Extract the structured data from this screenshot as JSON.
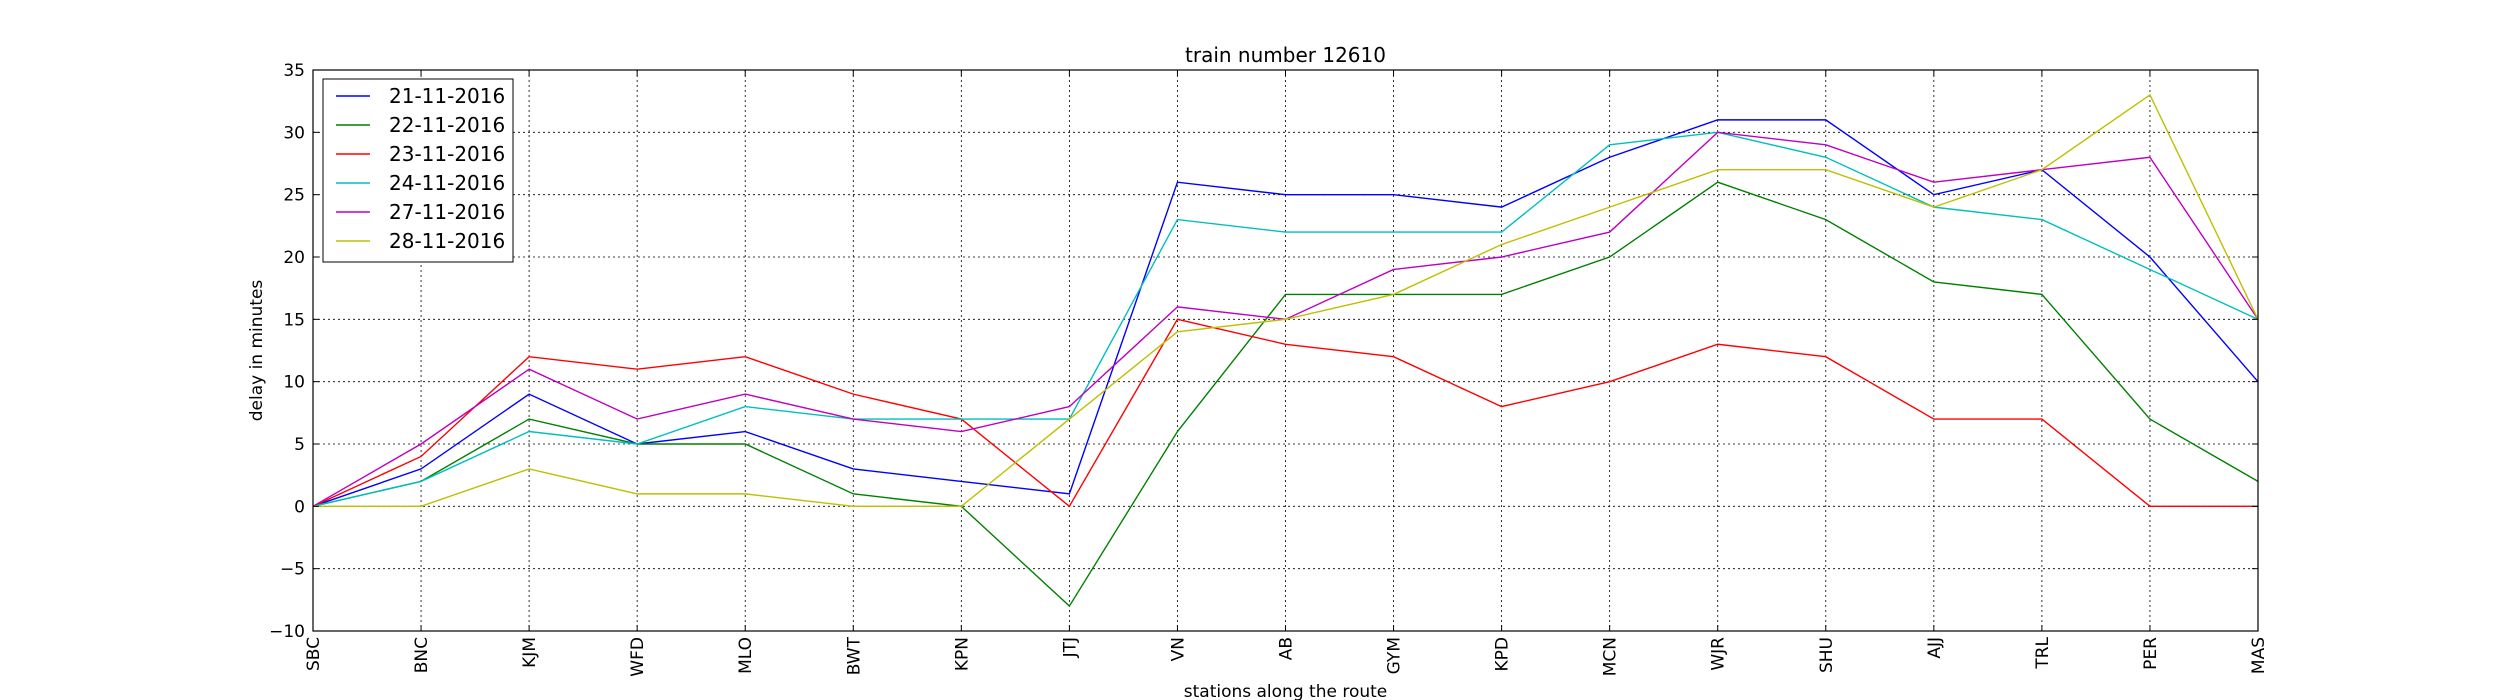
{
  "chart_data": {
    "type": "line",
    "title": "train number 12610",
    "xlabel": "stations along the route",
    "ylabel": "delay in minutes",
    "categories": [
      "SBC",
      "BNC",
      "KJM",
      "WFD",
      "MLO",
      "BWT",
      "KPN",
      "JTJ",
      "VN",
      "AB",
      "GYM",
      "KPD",
      "MCN",
      "WJR",
      "SHU",
      "AJJ",
      "TRL",
      "PER",
      "MAS"
    ],
    "ylim": [
      -10,
      35
    ],
    "yticks": [
      -10,
      -5,
      0,
      5,
      10,
      15,
      20,
      25,
      30,
      35
    ],
    "grid": true,
    "legend_position": "top-left",
    "series": [
      {
        "name": "21-11-2016",
        "color": "#0000ff",
        "values": [
          0,
          3,
          9,
          5,
          6,
          3,
          2,
          1,
          26,
          25,
          25,
          24,
          28,
          31,
          31,
          25,
          27,
          20,
          10
        ]
      },
      {
        "name": "22-11-2016",
        "color": "#008000",
        "values": [
          0,
          2,
          7,
          5,
          5,
          1,
          0,
          -8,
          6,
          17,
          17,
          17,
          20,
          26,
          23,
          18,
          17,
          7,
          2
        ]
      },
      {
        "name": "23-11-2016",
        "color": "#ff0000",
        "values": [
          0,
          4,
          12,
          11,
          12,
          9,
          7,
          0,
          15,
          13,
          12,
          8,
          10,
          13,
          12,
          7,
          7,
          0,
          0
        ]
      },
      {
        "name": "24-11-2016",
        "color": "#00bfbf",
        "values": [
          0,
          2,
          6,
          5,
          8,
          7,
          7,
          7,
          23,
          22,
          22,
          22,
          29,
          30,
          28,
          24,
          23,
          19,
          15
        ]
      },
      {
        "name": "27-11-2016",
        "color": "#bf00bf",
        "values": [
          0,
          5,
          11,
          7,
          9,
          7,
          6,
          8,
          16,
          15,
          19,
          20,
          22,
          30,
          29,
          26,
          27,
          28,
          15
        ]
      },
      {
        "name": "28-11-2016",
        "color": "#bfbf00",
        "values": [
          0,
          0,
          3,
          1,
          1,
          0,
          0,
          7,
          14,
          15,
          17,
          21,
          24,
          27,
          27,
          24,
          27,
          33,
          15
        ]
      }
    ]
  }
}
